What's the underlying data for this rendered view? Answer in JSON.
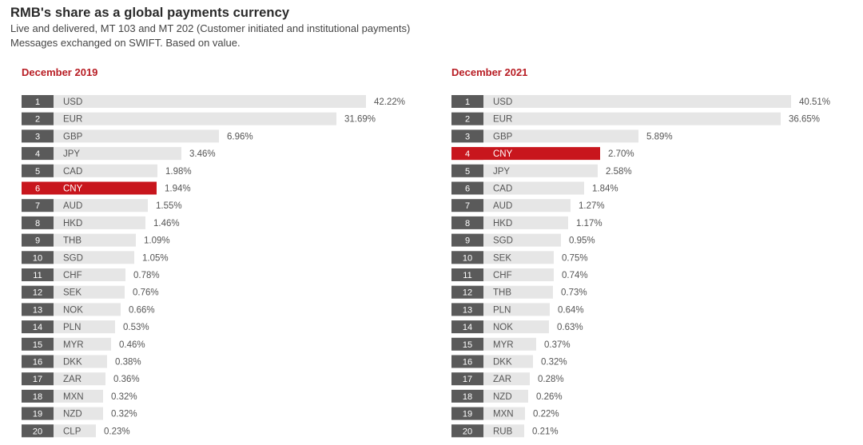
{
  "header": {
    "title": "RMB's share as a global payments currency",
    "subtitle_line1": "Live and delivered, MT 103 and MT 202 (Customer initiated and institutional payments)",
    "subtitle_line2": "Messages exchanged on SWIFT. Based on value."
  },
  "colors": {
    "bar": "#e6e6e6",
    "rank_box": "#5a5a5a",
    "highlight": "#c8161d",
    "title_red": "#b81d24"
  },
  "chart_data": [
    {
      "type": "bar",
      "orientation": "horizontal",
      "title": "December 2019",
      "highlight": "CNY",
      "categories": [
        "USD",
        "EUR",
        "GBP",
        "JPY",
        "CAD",
        "CNY",
        "AUD",
        "HKD",
        "THB",
        "SGD",
        "CHF",
        "SEK",
        "NOK",
        "PLN",
        "MYR",
        "DKK",
        "ZAR",
        "MXN",
        "NZD",
        "CLP"
      ],
      "ranks": [
        "1",
        "2",
        "3",
        "4",
        "5",
        "6",
        "7",
        "8",
        "9",
        "10",
        "11",
        "12",
        "13",
        "14",
        "15",
        "16",
        "17",
        "18",
        "19",
        "20"
      ],
      "values": [
        42.22,
        31.69,
        6.96,
        3.46,
        1.98,
        1.94,
        1.55,
        1.46,
        1.09,
        1.05,
        0.78,
        0.76,
        0.66,
        0.53,
        0.46,
        0.38,
        0.36,
        0.32,
        0.32,
        0.23
      ],
      "labels": [
        "42.22%",
        "31.69%",
        "6.96%",
        "3.46%",
        "1.98%",
        "1.94%",
        "1.55%",
        "1.46%",
        "1.09%",
        "1.05%",
        "0.78%",
        "0.76%",
        "0.66%",
        "0.53%",
        "0.46%",
        "0.38%",
        "0.36%",
        "0.32%",
        "0.32%",
        "0.23%"
      ]
    },
    {
      "type": "bar",
      "orientation": "horizontal",
      "title": "December 2021",
      "highlight": "CNY",
      "categories": [
        "USD",
        "EUR",
        "GBP",
        "CNY",
        "JPY",
        "CAD",
        "AUD",
        "HKD",
        "SGD",
        "SEK",
        "CHF",
        "THB",
        "PLN",
        "NOK",
        "MYR",
        "DKK",
        "ZAR",
        "NZD",
        "MXN",
        "RUB"
      ],
      "ranks": [
        "1",
        "2",
        "3",
        "4",
        "5",
        "6",
        "7",
        "8",
        "9",
        "10",
        "11",
        "12",
        "13",
        "14",
        "15",
        "16",
        "17",
        "18",
        "19",
        "20"
      ],
      "values": [
        40.51,
        36.65,
        5.89,
        2.7,
        2.58,
        1.84,
        1.27,
        1.17,
        0.95,
        0.75,
        0.74,
        0.73,
        0.64,
        0.63,
        0.37,
        0.32,
        0.28,
        0.26,
        0.22,
        0.21
      ],
      "labels": [
        "40.51%",
        "36.65%",
        "5.89%",
        "2.70%",
        "2.58%",
        "1.84%",
        "1.27%",
        "1.17%",
        "0.95%",
        "0.75%",
        "0.74%",
        "0.73%",
        "0.64%",
        "0.63%",
        "0.37%",
        "0.32%",
        "0.28%",
        "0.26%",
        "0.22%",
        "0.21%"
      ]
    }
  ]
}
